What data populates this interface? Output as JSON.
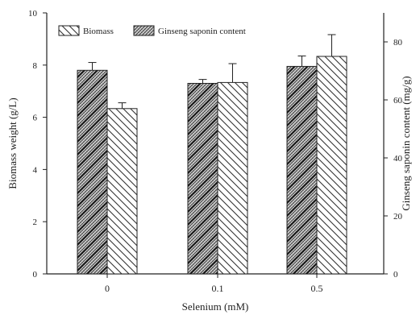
{
  "chart_data": {
    "type": "bar",
    "categories": [
      "0",
      "0.1",
      "0.5"
    ],
    "xlabel": "Selenium (mM)",
    "ylabel": "Biomass weight (g/L)",
    "y2label": "Ginseng saponin content (mg/g)",
    "ylim": [
      0,
      10
    ],
    "y2lim": [
      0,
      90
    ],
    "yticks": [
      0,
      2,
      4,
      6,
      8,
      10
    ],
    "y2ticks": [
      0,
      20,
      40,
      60,
      80
    ],
    "grid": false,
    "legend_position": "top-left",
    "series": [
      {
        "name": "Biomass",
        "axis": "left",
        "pattern": "diagonal-hatch-cross",
        "values": [
          7.8,
          7.3,
          7.95
        ],
        "errors": [
          0.3,
          0.15,
          0.4
        ]
      },
      {
        "name": "Ginseng saponin content",
        "axis": "right",
        "pattern": "diagonal-hatch",
        "values": [
          57,
          66,
          75
        ],
        "errors": [
          2,
          6.5,
          7.5
        ]
      }
    ],
    "legend_labels": [
      "Biomass",
      "Ginseng saponin content"
    ]
  }
}
